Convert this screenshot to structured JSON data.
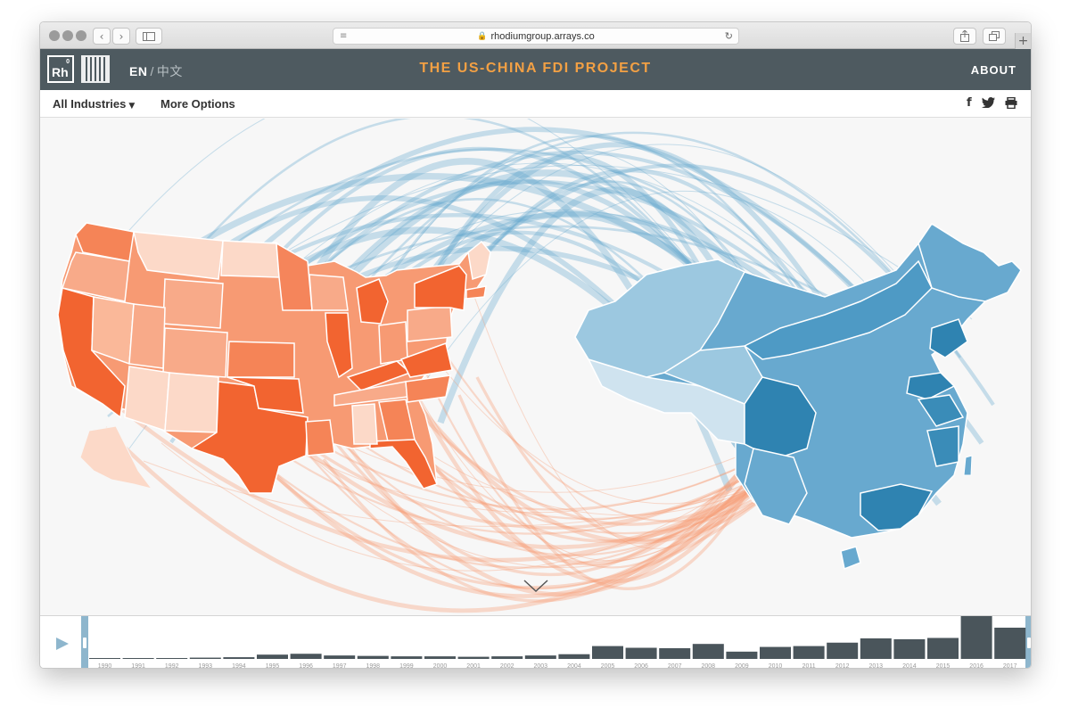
{
  "browser": {
    "url": "rhodiumgroup.arrays.co"
  },
  "header": {
    "logo_text": "Rh",
    "lang_en": "EN",
    "lang_sep": "/",
    "lang_zh": "中文",
    "title": "THE US-CHINA FDI PROJECT",
    "about": "ABOUT"
  },
  "filters": {
    "industries": "All Industries",
    "more_options": "More Options",
    "social": [
      "f",
      "twitter",
      "print"
    ]
  },
  "colors": {
    "us_dark": "#f26430",
    "us_mid": "#f79a73",
    "us_light": "#fcd9c8",
    "cn_dark": "#3a8cb8",
    "cn_mid": "#68a9cf",
    "cn_light": "#cfe3ef",
    "header_bg": "#4e5a60",
    "title_orange": "#f2a044",
    "bar_fill": "#4a555b"
  },
  "timeline": {
    "years": [
      "1990",
      "1991",
      "1992",
      "1993",
      "1994",
      "1995",
      "1996",
      "1997",
      "1998",
      "1999",
      "2000",
      "2001",
      "2002",
      "2003",
      "2004",
      "2005",
      "2006",
      "2007",
      "2008",
      "2009",
      "2010",
      "2011",
      "2012",
      "2013",
      "2014",
      "2015",
      "2016",
      "2017"
    ],
    "relative_values": [
      0.01,
      0.01,
      0.02,
      0.03,
      0.04,
      0.1,
      0.12,
      0.08,
      0.07,
      0.06,
      0.06,
      0.05,
      0.06,
      0.08,
      0.11,
      0.3,
      0.26,
      0.25,
      0.35,
      0.17,
      0.28,
      0.3,
      0.38,
      0.48,
      0.46,
      0.49,
      1.0,
      0.73
    ]
  }
}
